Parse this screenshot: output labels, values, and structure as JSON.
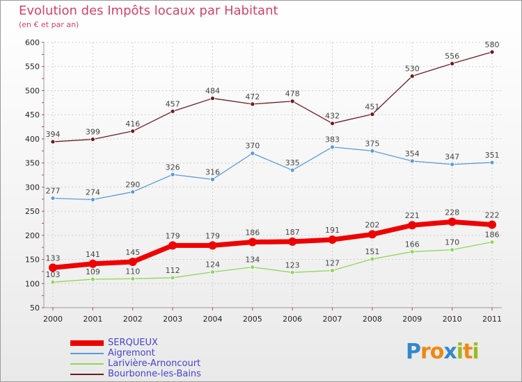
{
  "chart_data": {
    "type": "line",
    "title": "Evolution des Impôts locaux par Habitant",
    "subtitle": "(en € et par an)",
    "xlabel": "",
    "ylabel": "",
    "ylim": [
      50,
      600
    ],
    "yticks": [
      50,
      100,
      150,
      200,
      250,
      300,
      350,
      400,
      450,
      500,
      550,
      600
    ],
    "categories": [
      "2000",
      "2001",
      "2002",
      "2003",
      "2004",
      "2005",
      "2006",
      "2007",
      "2008",
      "2009",
      "2010",
      "2011"
    ],
    "series": [
      {
        "name": "Bourbonne-les-Bains",
        "color": "#6b1a1f",
        "values": [
          394,
          399,
          416,
          457,
          484,
          472,
          478,
          432,
          451,
          530,
          556,
          580
        ]
      },
      {
        "name": "Aigremont",
        "color": "#5b9bd5",
        "values": [
          277,
          274,
          290,
          326,
          316,
          370,
          335,
          383,
          375,
          354,
          347,
          351
        ]
      },
      {
        "name": "Larivière-Arnoncourt",
        "color": "#8ed65a",
        "values": [
          103,
          109,
          110,
          112,
          124,
          134,
          123,
          127,
          151,
          166,
          170,
          186
        ]
      },
      {
        "name": "SERQUEUX",
        "color": "#ee0000",
        "values": [
          133,
          141,
          145,
          179,
          179,
          186,
          187,
          191,
          202,
          221,
          228,
          222
        ]
      }
    ],
    "legend_position": "bottom-left",
    "legend": [
      "SERQUEUX",
      "Aigremont",
      "Larivière-Arnoncourt",
      "Bourbonne-les-Bains"
    ]
  },
  "logo": {
    "text": "Proxiti"
  }
}
